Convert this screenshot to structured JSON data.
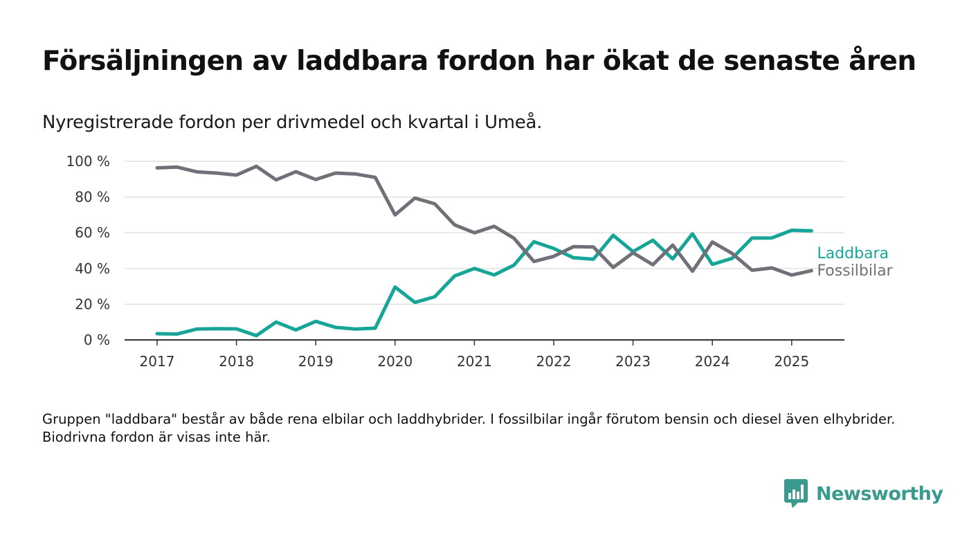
{
  "header": {
    "title": "Försäljningen av laddbara fordon har ökat de senaste åren",
    "subtitle": "Nyregistrerade fordon per drivmedel och kvartal i Umeå."
  },
  "footer": {
    "note": "Gruppen \"laddbara\" består av både rena elbilar och laddhybrider. I fossilbilar ingår förutom bensin och diesel även elhybrider. Biodrivna fordon är visas inte här.",
    "brand": "Newsworthy",
    "brand_icon": "bar-chart-speech-bubble-icon"
  },
  "chart_data": {
    "type": "line",
    "x": [
      "2017-Q1",
      "2017-Q2",
      "2017-Q3",
      "2017-Q4",
      "2018-Q1",
      "2018-Q2",
      "2018-Q3",
      "2018-Q4",
      "2019-Q1",
      "2019-Q2",
      "2019-Q3",
      "2019-Q4",
      "2020-Q1",
      "2020-Q2",
      "2020-Q3",
      "2020-Q4",
      "2021-Q1",
      "2021-Q2",
      "2021-Q3",
      "2021-Q4",
      "2022-Q1",
      "2022-Q2",
      "2022-Q3",
      "2022-Q4",
      "2023-Q1",
      "2023-Q2",
      "2023-Q3",
      "2023-Q4",
      "2024-Q1",
      "2024-Q2",
      "2024-Q3",
      "2024-Q4",
      "2025-Q1",
      "2025-Q2"
    ],
    "x_tick_labels": [
      "2017",
      "2018",
      "2019",
      "2020",
      "2021",
      "2022",
      "2023",
      "2024",
      "2025"
    ],
    "y_tick_labels": [
      "0 %",
      "20 %",
      "40 %",
      "60 %",
      "80 %",
      "100 %"
    ],
    "y_ticks": [
      0,
      20,
      40,
      60,
      80,
      100
    ],
    "ylim": [
      0,
      100
    ],
    "grid": true,
    "legend": "end-of-line labels",
    "series": [
      {
        "name": "Laddbara",
        "color": "#17a598",
        "values": [
          3.5,
          3.3,
          6.1,
          6.3,
          6.2,
          2.4,
          10.0,
          5.6,
          10.4,
          7.0,
          6.1,
          6.6,
          29.6,
          21.0,
          24.2,
          35.8,
          40.0,
          36.4,
          41.9,
          55.0,
          51.2,
          46.0,
          45.2,
          58.6,
          49.4,
          55.8,
          45.4,
          59.4,
          42.3,
          45.7,
          57.0,
          57.1,
          61.4,
          61.1
        ]
      },
      {
        "name": "Fossilbilar",
        "color": "#707078",
        "values": [
          96.3,
          96.8,
          94.1,
          93.4,
          92.3,
          97.2,
          89.6,
          94.2,
          89.8,
          93.4,
          92.9,
          91.0,
          70.0,
          79.4,
          76.2,
          64.4,
          60.0,
          63.6,
          56.9,
          43.9,
          46.8,
          52.2,
          52.0,
          40.6,
          48.8,
          42.1,
          53.1,
          38.5,
          54.8,
          48.4,
          39.0,
          40.3,
          36.3,
          38.8
        ]
      }
    ]
  }
}
